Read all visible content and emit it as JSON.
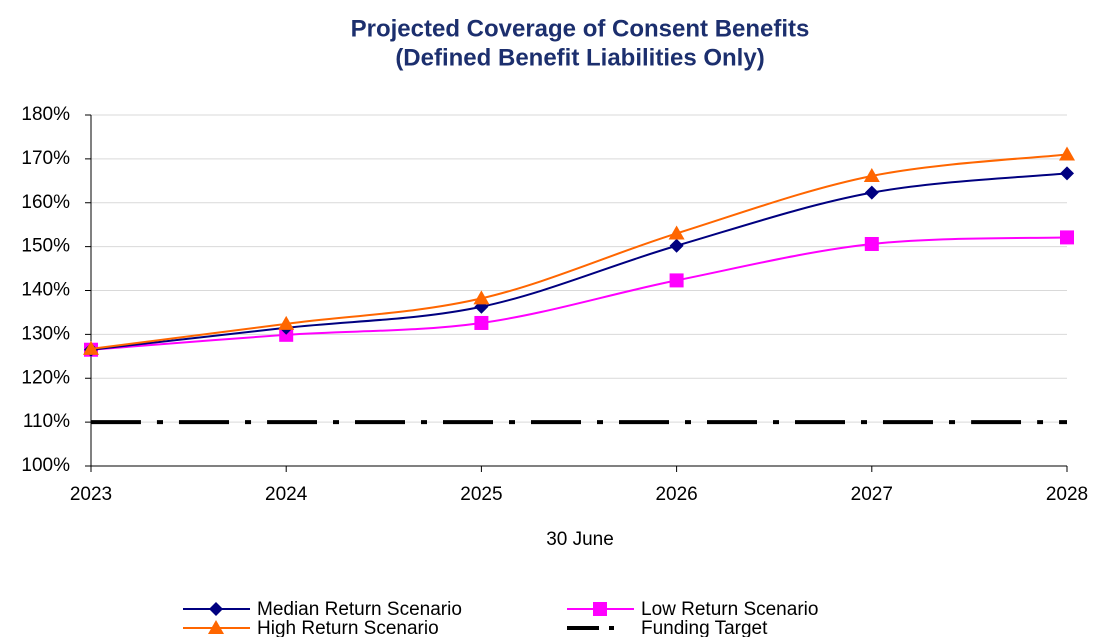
{
  "chart_data": {
    "type": "line",
    "title": [
      "Projected Coverage of Consent Benefits",
      "(Defined Benefit Liabilities Only)"
    ],
    "xlabel": "30 June",
    "x": [
      2023,
      2024,
      2025,
      2026,
      2027,
      2028
    ],
    "xlim": [
      2023,
      2028
    ],
    "xticks": [
      2023,
      2024,
      2025,
      2026,
      2027,
      2028
    ],
    "ylim": [
      100,
      180
    ],
    "yticks": [
      {
        "value": 100,
        "label": "100%"
      },
      {
        "value": 110,
        "label": "110%"
      },
      {
        "value": 120,
        "label": "120%"
      },
      {
        "value": 130,
        "label": "130%"
      },
      {
        "value": 140,
        "label": "140%"
      },
      {
        "value": 150,
        "label": "150%"
      },
      {
        "value": 160,
        "label": "160%"
      },
      {
        "value": 170,
        "label": "170%"
      },
      {
        "value": 180,
        "label": "180%"
      }
    ],
    "grid": true,
    "smooth": true,
    "series": [
      {
        "name": "Median Return Scenario",
        "color": "#000080",
        "marker": "diamond",
        "style": "solid",
        "values": [
          126.5,
          131.5,
          136.3,
          150.2,
          162.3,
          166.7
        ]
      },
      {
        "name": "Low Return Scenario",
        "color": "#ff00ff",
        "marker": "square",
        "style": "solid",
        "values": [
          126.5,
          129.9,
          132.6,
          142.3,
          150.6,
          152.1
        ]
      },
      {
        "name": "High Return Scenario",
        "color": "#ff6600",
        "marker": "triangle",
        "style": "solid",
        "values": [
          126.7,
          132.4,
          138.2,
          153.0,
          166.1,
          171.0
        ]
      },
      {
        "name": "Funding Target",
        "color": "#000000",
        "marker": "none",
        "style": "dashdot",
        "values": [
          110,
          110,
          110,
          110,
          110,
          110
        ]
      }
    ]
  }
}
